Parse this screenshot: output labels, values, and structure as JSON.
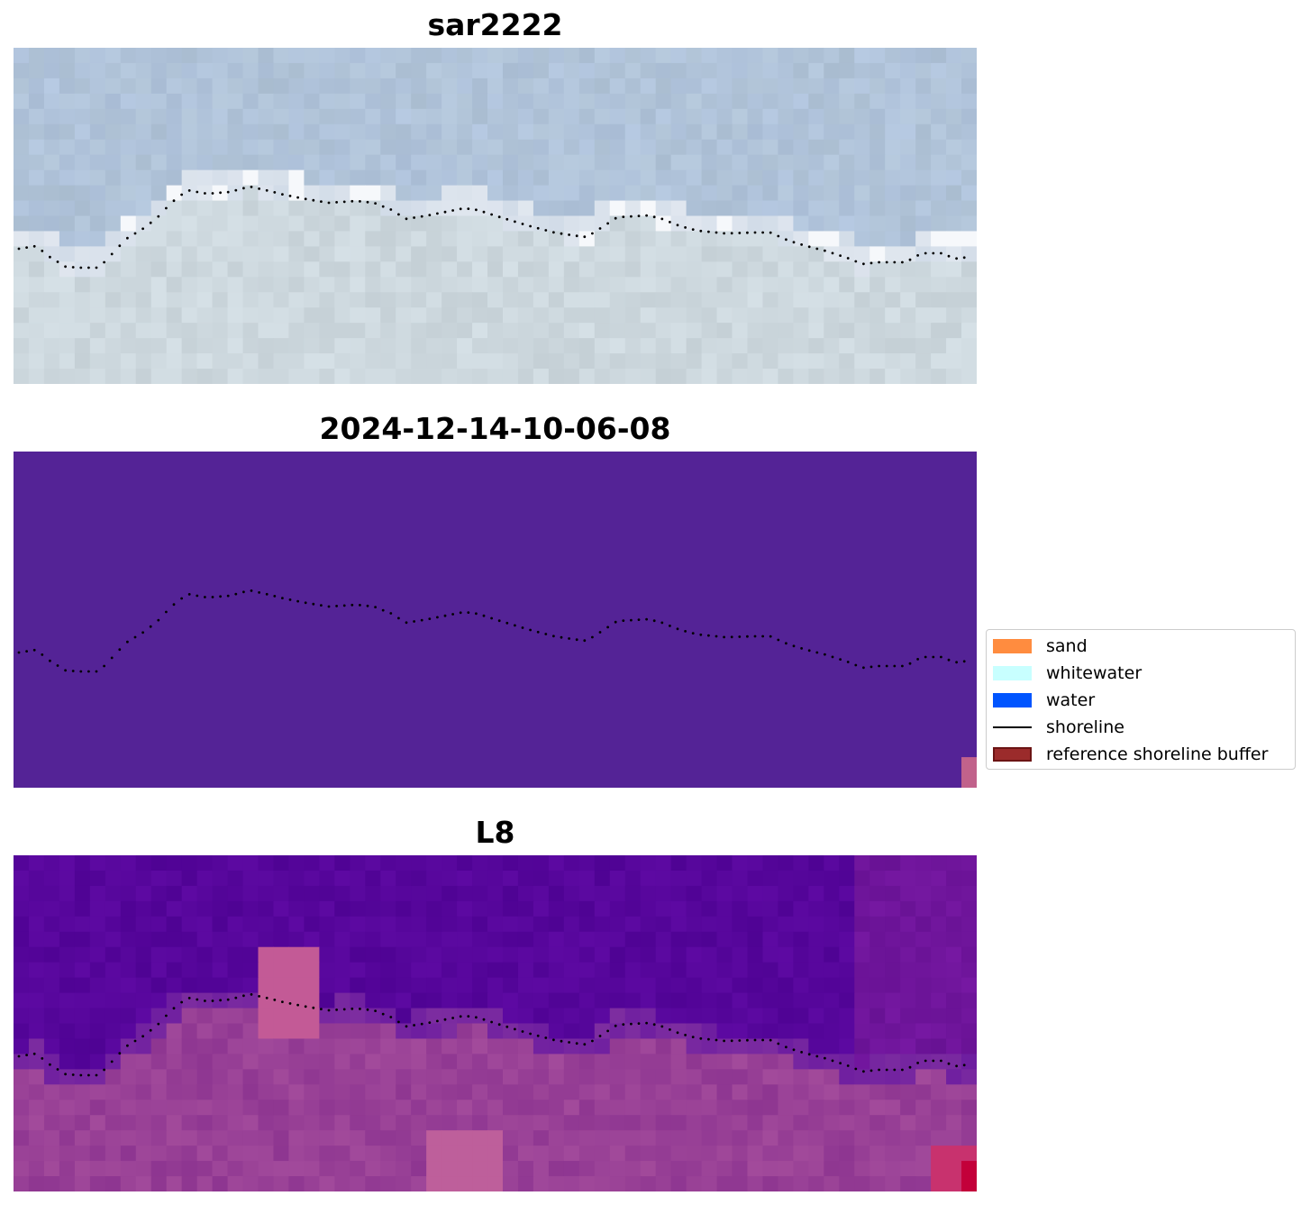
{
  "panels": [
    {
      "title": "sar2222",
      "colormap": "rgb"
    },
    {
      "title": "2024-12-14-10-06-08",
      "colormap": "classified"
    },
    {
      "title": "L8",
      "colormap": "index"
    }
  ],
  "colors": {
    "rgb_water": "#b0c3d6",
    "rgb_whitewater": "#f6f8fb",
    "rgb_land": "#cdd8df",
    "classified_fill": "#542396",
    "classified_corner": "#c1628b",
    "index_water": "#52049b",
    "index_land": "#9a4396",
    "index_hot": "#c3003a",
    "shoreline": "#000000"
  },
  "legend": {
    "items": [
      {
        "label": "sand",
        "color": "#ff8c3f",
        "type": "patch"
      },
      {
        "label": "whitewater",
        "color": "#c8ffff",
        "type": "patch"
      },
      {
        "label": "water",
        "color": "#0055ff",
        "type": "patch"
      },
      {
        "label": "shoreline",
        "color": "#000000",
        "type": "line"
      },
      {
        "label": "reference shoreline buffer",
        "color": "#9b2b2b",
        "type": "patch"
      }
    ]
  }
}
